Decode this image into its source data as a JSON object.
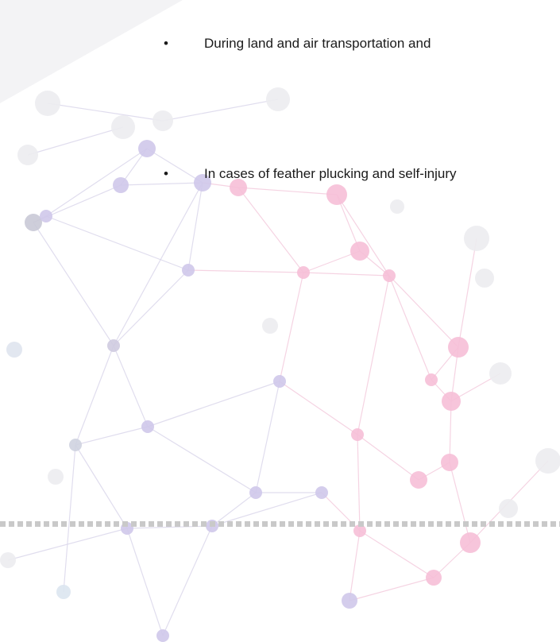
{
  "list": {
    "items": [
      "During land and air transportation and",
      "In cases of feather plucking and self-injury"
    ]
  }
}
